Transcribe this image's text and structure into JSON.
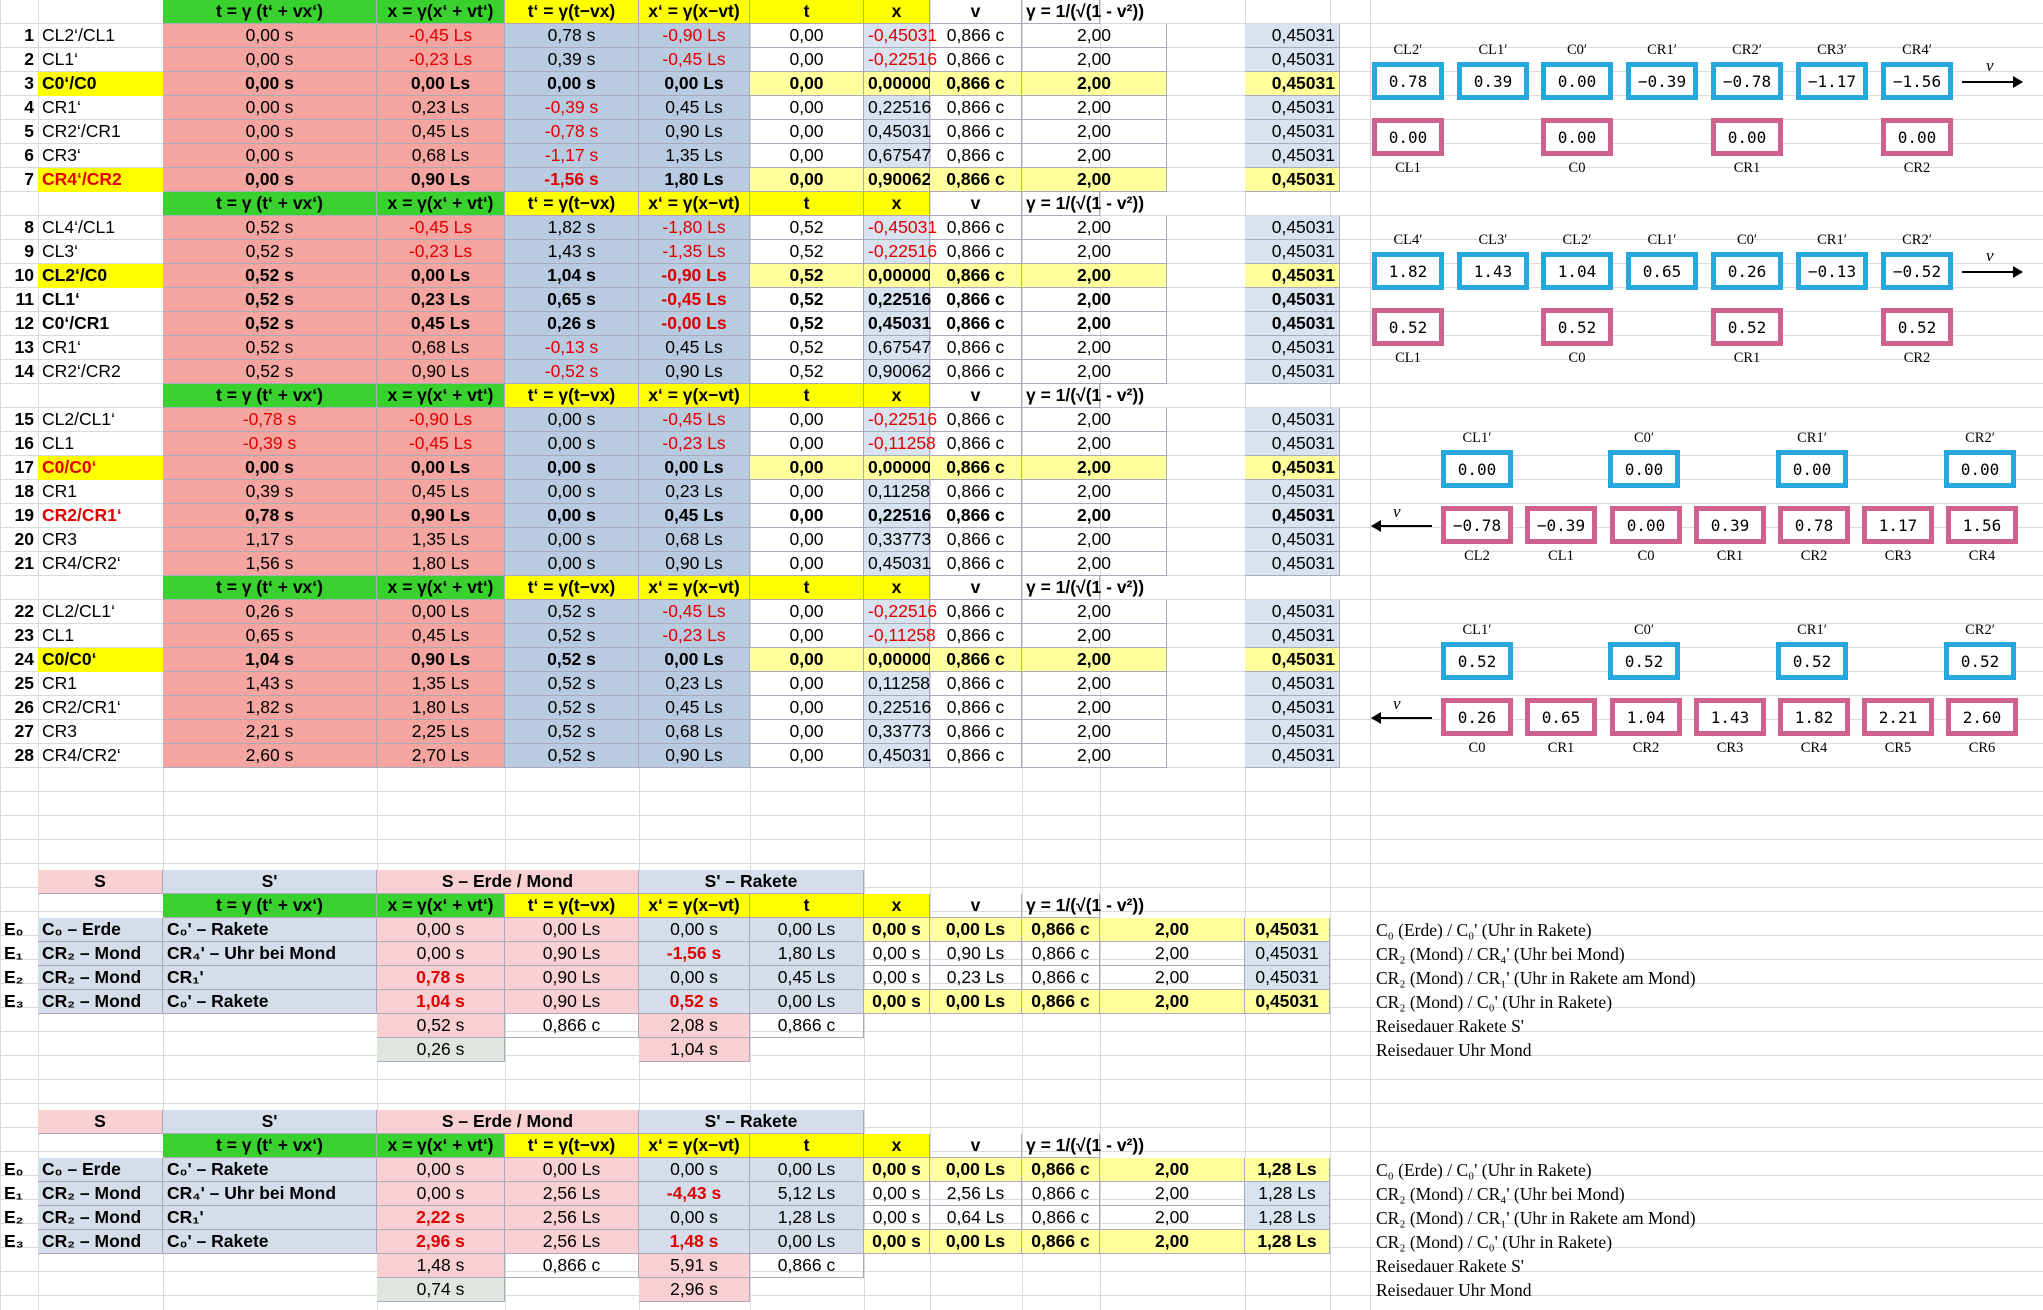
{
  "headers": {
    "t": "t = γ (t‘ + vx‘)",
    "x": "x = γ(x‘ + vt‘)",
    "tp": "t‘ = γ(t−vx)",
    "xp": "x‘ = γ(x−vt)",
    "tt": "t",
    "xx": "x",
    "v": "v",
    "g": "γ  =  1/(√(1 - v²))"
  },
  "blocks": [
    {
      "hdr": false,
      "rows": [
        [
          "1",
          "CL2‘/CL1",
          "0,00 s",
          "-0,45 Ls",
          "0,78 s",
          "-0,90 Ls",
          "0,00",
          "-0,45031",
          "0,866 c",
          "2,00",
          "0,45031"
        ],
        [
          "2",
          "CL1‘",
          "0,00 s",
          "-0,23 Ls",
          "0,39 s",
          "-0,45 Ls",
          "0,00",
          "-0,22516",
          "0,866 c",
          "2,00",
          "0,45031"
        ],
        [
          "3",
          "C0‘/C0",
          "0,00 s",
          "0,00 Ls",
          "0,00 s",
          "0,00 Ls",
          "0,00",
          "0,00000",
          "0,866 c",
          "2,00",
          "0,45031"
        ],
        [
          "4",
          "CR1‘",
          "0,00 s",
          "0,23 Ls",
          "-0,39 s",
          "0,45 Ls",
          "0,00",
          "0,22516",
          "0,866 c",
          "2,00",
          "0,45031"
        ],
        [
          "5",
          "CR2‘/CR1",
          "0,00 s",
          "0,45 Ls",
          "-0,78 s",
          "0,90 Ls",
          "0,00",
          "0,45031",
          "0,866 c",
          "2,00",
          "0,45031"
        ],
        [
          "6",
          "CR3‘",
          "0,00 s",
          "0,68 Ls",
          "-1,17 s",
          "1,35 Ls",
          "0,00",
          "0,67547",
          "0,866 c",
          "2,00",
          "0,45031"
        ],
        [
          "7",
          "CR4‘/CR2",
          "0,00 s",
          "0,90 Ls",
          "-1,56 s",
          "1,80 Ls",
          "0,00",
          "0,90062",
          "0,866 c",
          "2,00",
          "0,45031"
        ]
      ]
    },
    {
      "hdr": true,
      "rows": [
        [
          "8",
          "CL4‘/CL1",
          "0,52 s",
          "-0,45 Ls",
          "1,82 s",
          "-1,80 Ls",
          "0,52",
          "-0,45031",
          "0,866 c",
          "2,00",
          "0,45031"
        ],
        [
          "9",
          "CL3‘",
          "0,52 s",
          "-0,23 Ls",
          "1,43 s",
          "-1,35 Ls",
          "0,52",
          "-0,22516",
          "0,866 c",
          "2,00",
          "0,45031"
        ],
        [
          "10",
          "CL2‘/C0",
          "0,52 s",
          "0,00 Ls",
          "1,04 s",
          "-0,90 Ls",
          "0,52",
          "0,00000",
          "0,866 c",
          "2,00",
          "0,45031"
        ],
        [
          "11",
          "CL1‘",
          "0,52 s",
          "0,23 Ls",
          "0,65 s",
          "-0,45 Ls",
          "0,52",
          "0,22516",
          "0,866 c",
          "2,00",
          "0,45031"
        ],
        [
          "12",
          "C0‘/CR1",
          "0,52 s",
          "0,45 Ls",
          "0,26 s",
          "-0,00 Ls",
          "0,52",
          "0,45031",
          "0,866 c",
          "2,00",
          "0,45031"
        ],
        [
          "13",
          "CR1‘",
          "0,52 s",
          "0,68 Ls",
          "-0,13 s",
          "0,45 Ls",
          "0,52",
          "0,67547",
          "0,866 c",
          "2,00",
          "0,45031"
        ],
        [
          "14",
          "CR2‘/CR2",
          "0,52 s",
          "0,90 Ls",
          "-0,52 s",
          "0,90 Ls",
          "0,52",
          "0,90062",
          "0,866 c",
          "2,00",
          "0,45031"
        ]
      ]
    },
    {
      "hdr": true,
      "rows": [
        [
          "15",
          "CL2/CL1‘",
          "-0,78 s",
          "-0,90 Ls",
          "0,00 s",
          "-0,45 Ls",
          "0,00",
          "-0,22516",
          "0,866 c",
          "2,00",
          "0,45031"
        ],
        [
          "16",
          "CL1",
          "-0,39 s",
          "-0,45 Ls",
          "0,00 s",
          "-0,23 Ls",
          "0,00",
          "-0,11258",
          "0,866 c",
          "2,00",
          "0,45031"
        ],
        [
          "17",
          "C0/C0‘",
          "0,00 s",
          "0,00 Ls",
          "0,00 s",
          "0,00 Ls",
          "0,00",
          "0,00000",
          "0,866 c",
          "2,00",
          "0,45031"
        ],
        [
          "18",
          "CR1",
          "0,39 s",
          "0,45 Ls",
          "0,00 s",
          "0,23 Ls",
          "0,00",
          "0,11258",
          "0,866 c",
          "2,00",
          "0,45031"
        ],
        [
          "19",
          "CR2/CR1‘",
          "0,78 s",
          "0,90 Ls",
          "0,00 s",
          "0,45 Ls",
          "0,00",
          "0,22516",
          "0,866 c",
          "2,00",
          "0,45031"
        ],
        [
          "20",
          "CR3",
          "1,17 s",
          "1,35 Ls",
          "0,00 s",
          "0,68 Ls",
          "0,00",
          "0,33773",
          "0,866 c",
          "2,00",
          "0,45031"
        ],
        [
          "21",
          "CR4/CR2‘",
          "1,56 s",
          "1,80 Ls",
          "0,00 s",
          "0,90 Ls",
          "0,00",
          "0,45031",
          "0,866 c",
          "2,00",
          "0,45031"
        ]
      ]
    },
    {
      "hdr": true,
      "rows": [
        [
          "22",
          "CL2/CL1‘",
          "0,26 s",
          "0,00 Ls",
          "0,52 s",
          "-0,45 Ls",
          "0,00",
          "-0,22516",
          "0,866 c",
          "2,00",
          "0,45031"
        ],
        [
          "23",
          "CL1",
          "0,65 s",
          "0,45 Ls",
          "0,52 s",
          "-0,23 Ls",
          "0,00",
          "-0,11258",
          "0,866 c",
          "2,00",
          "0,45031"
        ],
        [
          "24",
          "C0/C0‘",
          "1,04 s",
          "0,90 Ls",
          "0,52 s",
          "0,00 Ls",
          "0,00",
          "0,00000",
          "0,866 c",
          "2,00",
          "0,45031"
        ],
        [
          "25",
          "CR1",
          "1,43 s",
          "1,35 Ls",
          "0,52 s",
          "0,23 Ls",
          "0,00",
          "0,11258",
          "0,866 c",
          "2,00",
          "0,45031"
        ],
        [
          "26",
          "CR2/CR1‘",
          "1,82 s",
          "1,80 Ls",
          "0,52 s",
          "0,45 Ls",
          "0,00",
          "0,22516",
          "0,866 c",
          "2,00",
          "0,45031"
        ],
        [
          "27",
          "CR3",
          "2,21 s",
          "2,25 Ls",
          "0,52 s",
          "0,68 Ls",
          "0,00",
          "0,33773",
          "0,866 c",
          "2,00",
          "0,45031"
        ],
        [
          "28",
          "CR4/CR2‘",
          "2,60 s",
          "2,70 Ls",
          "0,52 s",
          "0,90 Ls",
          "0,00",
          "0,45031",
          "0,866 c",
          "2,00",
          "0,45031"
        ]
      ]
    }
  ],
  "event_tables": [
    {
      "titles": {
        "s": "S",
        "sp": "S'",
        "se": "S – Erde / Mond",
        "sr": "S' – Rakete"
      },
      "rows": [
        [
          "E₀",
          "C₀   – Erde",
          "C₀'    – Rakete",
          "0,00 s",
          "0,00 Ls",
          "0,00 s",
          "0,00 Ls",
          "0,00 s",
          "0,00 Ls",
          "0,866 c",
          "2,00",
          "0,45031"
        ],
        [
          "E₁",
          "CR₂ – Mond",
          "CR₄' – Uhr bei Mond",
          "0,00 s",
          "0,90 Ls",
          "-1,56 s",
          "1,80 Ls",
          "0,00 s",
          "0,90 Ls",
          "0,866 c",
          "2,00",
          "0,45031"
        ],
        [
          "E₂",
          "CR₂ – Mond",
          "CR₁'",
          "0,78 s",
          "0,90 Ls",
          "0,00 s",
          "0,45 Ls",
          "0,00 s",
          "0,23 Ls",
          "0,866 c",
          "2,00",
          "0,45031"
        ],
        [
          "E₃",
          "CR₂ – Mond",
          "C₀'    – Rakete",
          "1,04 s",
          "0,90 Ls",
          "0,52 s",
          "0,00 Ls",
          "0,00 s",
          "0,00 Ls",
          "0,866 c",
          "2,00",
          "0,45031"
        ]
      ],
      "extra1": [
        "0,52 s",
        "0,866 c",
        "2,08 s",
        "0,866 c"
      ],
      "extra2": [
        "0,26 s",
        "1,04 s"
      ],
      "notes": [
        "C₀   (Erde)   / C₀'    (Uhr in Rakete)",
        "CR₂ (Mond) / CR₄' (Uhr bei Mond)",
        "CR₂ (Mond) / CR₁' (Uhr in Rakete am Mond)",
        "CR₂ (Mond) / C₀'    (Uhr in Rakete)",
        "Reisedauer Rakete S'",
        "Reisedauer Uhr Mond"
      ]
    },
    {
      "titles": {
        "s": "S",
        "sp": "S'",
        "se": "S – Erde / Mond",
        "sr": "S' – Rakete"
      },
      "rows": [
        [
          "E₀",
          "C₀   – Erde",
          "C₀'    – Rakete",
          "0,00 s",
          "0,00 Ls",
          "0,00 s",
          "0,00 Ls",
          "0,00 s",
          "0,00 Ls",
          "0,866 c",
          "2,00",
          "1,28 Ls"
        ],
        [
          "E₁",
          "CR₂ – Mond",
          "CR₄' – Uhr bei Mond",
          "0,00 s",
          "2,56 Ls",
          "-4,43 s",
          "5,12 Ls",
          "0,00 s",
          "2,56 Ls",
          "0,866 c",
          "2,00",
          "1,28 Ls"
        ],
        [
          "E₂",
          "CR₂ – Mond",
          "CR₁'",
          "2,22 s",
          "2,56 Ls",
          "0,00 s",
          "1,28 Ls",
          "0,00 s",
          "0,64 Ls",
          "0,866 c",
          "2,00",
          "1,28 Ls"
        ],
        [
          "E₃",
          "CR₂ – Mond",
          "C₀'    – Rakete",
          "2,96 s",
          "2,56 Ls",
          "1,48 s",
          "0,00 Ls",
          "0,00 s",
          "0,00 Ls",
          "0,866 c",
          "2,00",
          "1,28 Ls"
        ]
      ],
      "extra1": [
        "1,48 s",
        "0,866 c",
        "5,91 s",
        "0,866 c"
      ],
      "extra2": [
        "0,74 s",
        "2,96 s"
      ],
      "notes": [
        "C₀   (Erde)   / C₀'    (Uhr in Rakete)",
        "CR₂ (Mond) / CR₄' (Uhr bei Mond)",
        "CR₂ (Mond) / CR₁' (Uhr in Rakete am Mond)",
        "CR₂ (Mond) / C₀'    (Uhr in Rakete)",
        "Reisedauer Rakete S'",
        "Reisedauer Uhr Mond"
      ]
    }
  ],
  "diagrams": [
    {
      "top_labels": [
        "CL2′",
        "CL1′",
        "C0′",
        "CR1′",
        "CR2′",
        "CR3′",
        "CR4′"
      ],
      "top_vals": [
        "0.78",
        "0.39",
        "0.00",
        "−0.39",
        "−0.78",
        "−1.17",
        "−1.56"
      ],
      "bot_labels": [
        "CL1",
        "C0",
        "CR1",
        "CR2"
      ],
      "bot_vals": [
        "0.00",
        "0.00",
        "0.00",
        "0.00"
      ],
      "v": "v"
    },
    {
      "top_labels": [
        "CL4′",
        "CL3′",
        "CL2′",
        "CL1′",
        "C0′",
        "CR1′",
        "CR2′"
      ],
      "top_vals": [
        "1.82",
        "1.43",
        "1.04",
        "0.65",
        "0.26",
        "−0.13",
        "−0.52"
      ],
      "bot_labels": [
        "CL1",
        "C0",
        "CR1",
        "CR2"
      ],
      "bot_vals": [
        "0.52",
        "0.52",
        "0.52",
        "0.52"
      ],
      "v": "v"
    },
    {
      "top_labels": [
        "CL1′",
        "C0′",
        "CR1′",
        "CR2′"
      ],
      "top_vals": [
        "0.00",
        "0.00",
        "0.00",
        "0.00"
      ],
      "bot_labels": [
        "CL2",
        "CL1",
        "C0",
        "CR1",
        "CR2",
        "CR3",
        "CR4"
      ],
      "bot_vals": [
        "−0.78",
        "−0.39",
        "0.00",
        "0.39",
        "0.78",
        "1.17",
        "1.56"
      ],
      "v": "v"
    },
    {
      "top_labels": [
        "CL1′",
        "C0′",
        "CR1′",
        "CR2′"
      ],
      "top_vals": [
        "0.52",
        "0.52",
        "0.52",
        "0.52"
      ],
      "bot_labels": [
        "C0",
        "CR1",
        "CR2",
        "CR3",
        "CR4",
        "CR5",
        "CR6"
      ],
      "bot_vals": [
        "0.26",
        "0.65",
        "1.04",
        "1.43",
        "1.82",
        "2.21",
        "2.60"
      ],
      "v": "v"
    }
  ]
}
